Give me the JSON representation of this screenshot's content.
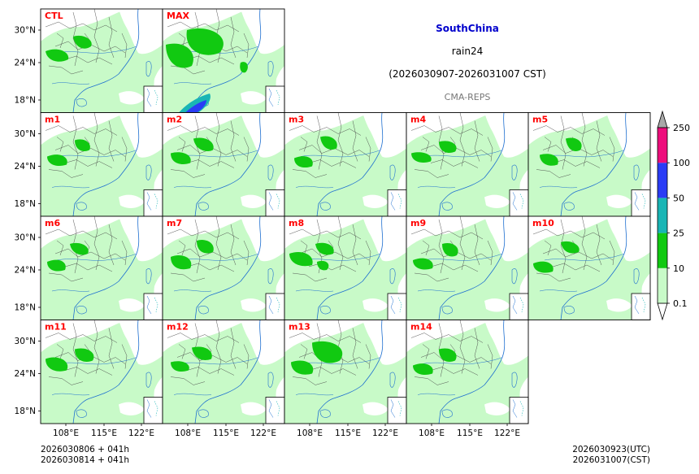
{
  "chart_data": {
    "type": "heatmap",
    "title": "SouthChina",
    "variable": "rain24",
    "period": "(2026030907-2026031007 CST)",
    "source": "CMA-REPS",
    "panels": [
      "CTL",
      "MAX",
      "m1",
      "m2",
      "m3",
      "m4",
      "m5",
      "m6",
      "m7",
      "m8",
      "m9",
      "m10",
      "m11",
      "m12",
      "m13",
      "m14"
    ],
    "lat_ticks": [
      "30°N",
      "24°N",
      "18°N"
    ],
    "lon_ticks": [
      "108°E",
      "115°E",
      "122°E"
    ],
    "colorbar": {
      "levels": [
        "0.1",
        "10",
        "25",
        "50",
        "100",
        "250"
      ],
      "colors": [
        "#c8fac8",
        "#11c911",
        "#19b5b5",
        "#2a3cf5",
        "#ee0d7c"
      ],
      "under_color": "#ffffff",
      "over_color": "#a8a8a8"
    },
    "init_lines": [
      "2026030806  +  041h",
      "2026030814  +  041h"
    ],
    "valid_lines": [
      "2026030923(UTC)",
      "2026031007(CST)"
    ]
  },
  "colors": {
    "title": "#0000cc",
    "panel_label": "#ff0000",
    "source": "#777777",
    "coast": "#1e6fd0",
    "border": "#444444"
  }
}
